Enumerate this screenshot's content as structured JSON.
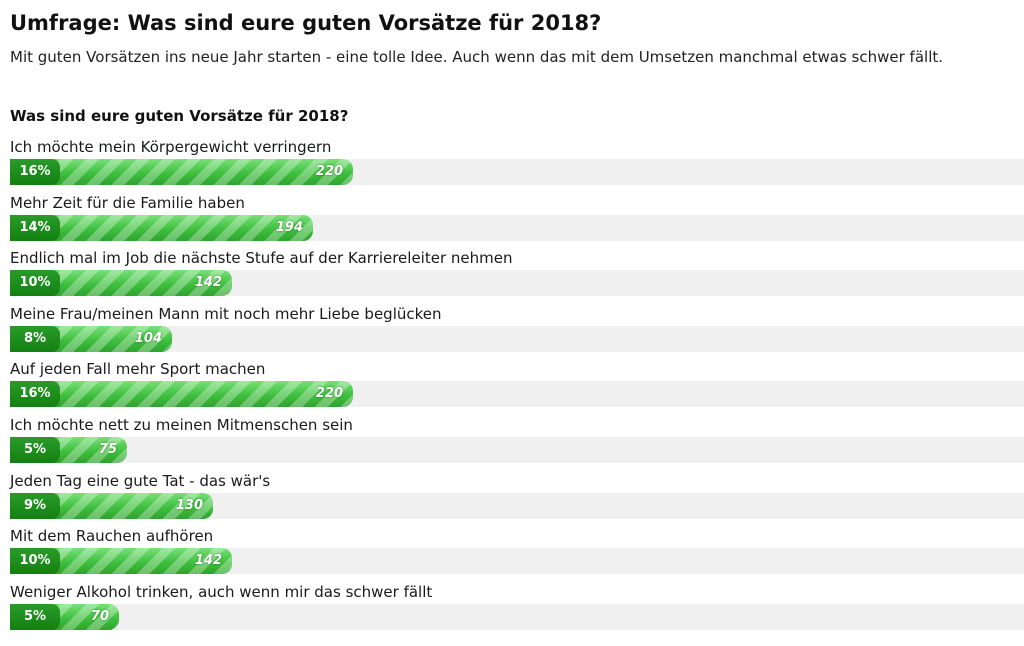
{
  "page": {
    "title": "Umfrage: Was sind eure guten Vorsätze für 2018?",
    "subtitle": "Mit guten Vorsätzen ins neue Jahr starten - eine tolle Idee. Auch wenn das mit dem Umsetzen manchmal etwas schwer fällt."
  },
  "chart_data": {
    "type": "bar",
    "title": "Was sind eure guten Vorsätze für 2018?",
    "categories": [
      "Ich möchte mein Körpergewicht verringern",
      "Mehr Zeit für die Familie haben",
      "Endlich mal im Job die nächste Stufe auf der Karriereleiter nehmen",
      "Meine Frau/meinen Mann mit noch mehr Liebe beglücken",
      "Auf jeden Fall mehr Sport machen",
      "Ich möchte nett zu meinen Mitmenschen sein",
      "Jeden Tag eine gute Tat - das wär's",
      "Mit dem Rauchen aufhören",
      "Weniger Alkohol trinken, auch wenn mir das schwer fällt"
    ],
    "values": [
      220,
      194,
      142,
      104,
      220,
      75,
      130,
      142,
      70
    ],
    "percent_labels": [
      "16%",
      "14%",
      "10%",
      "8%",
      "16%",
      "5%",
      "9%",
      "10%",
      "5%"
    ],
    "xlim": [
      0,
      650
    ],
    "bar_color": "#4cc74c",
    "badge_color": "#128012",
    "track_color": "#f0f0f0"
  }
}
